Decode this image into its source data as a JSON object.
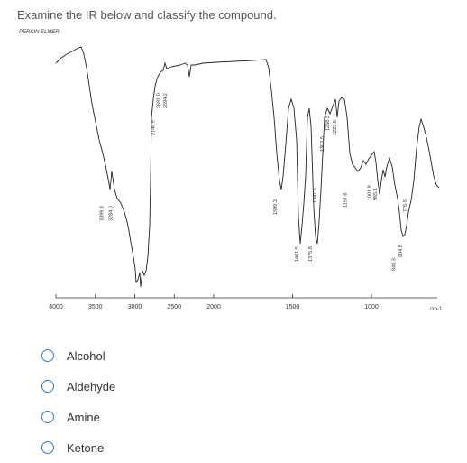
{
  "question": "Examine the IR below and classify the compound.",
  "chart_data": {
    "type": "line",
    "brand": "PERKIN ELMER",
    "xlabel": "",
    "ylabel": "",
    "x_unit": "cm-1",
    "x_ticks": [
      "4000",
      "3500",
      "3000",
      "2500",
      "2000",
      "1500",
      "1000"
    ],
    "xlim": [
      4000,
      800
    ],
    "peak_labels": [
      {
        "x": 3399.8,
        "label": "3399.8"
      },
      {
        "x": 3284.0,
        "label": "3284.0"
      },
      {
        "x": 2746.9,
        "label": "2746.9"
      },
      {
        "x": 2681.0,
        "label": "2681.0"
      },
      {
        "x": 2594.2,
        "label": "2594.2"
      },
      {
        "x": 1599.3,
        "label": "1599.3"
      },
      {
        "x": 1461.5,
        "label": "1461.5"
      },
      {
        "x": 1375.8,
        "label": "1375.8"
      },
      {
        "x": 1347.6,
        "label": "1347.6"
      },
      {
        "x": 1302.5,
        "label": "1302.5"
      },
      {
        "x": 1268.3,
        "label": "1268.3"
      },
      {
        "x": 1223.6,
        "label": "1223.6"
      },
      {
        "x": 1157.6,
        "label": "1157.6"
      },
      {
        "x": 1001.9,
        "label": "1001.9"
      },
      {
        "x": 965.1,
        "label": "965.1"
      },
      {
        "x": 848.3,
        "label": "848.3"
      },
      {
        "x": 804.8,
        "label": "804.8"
      },
      {
        "x": 776.5,
        "label": "776.5"
      }
    ]
  },
  "options": [
    {
      "label": "Alcohol"
    },
    {
      "label": "Aldehyde"
    },
    {
      "label": "Amine"
    },
    {
      "label": "Ketone"
    }
  ]
}
